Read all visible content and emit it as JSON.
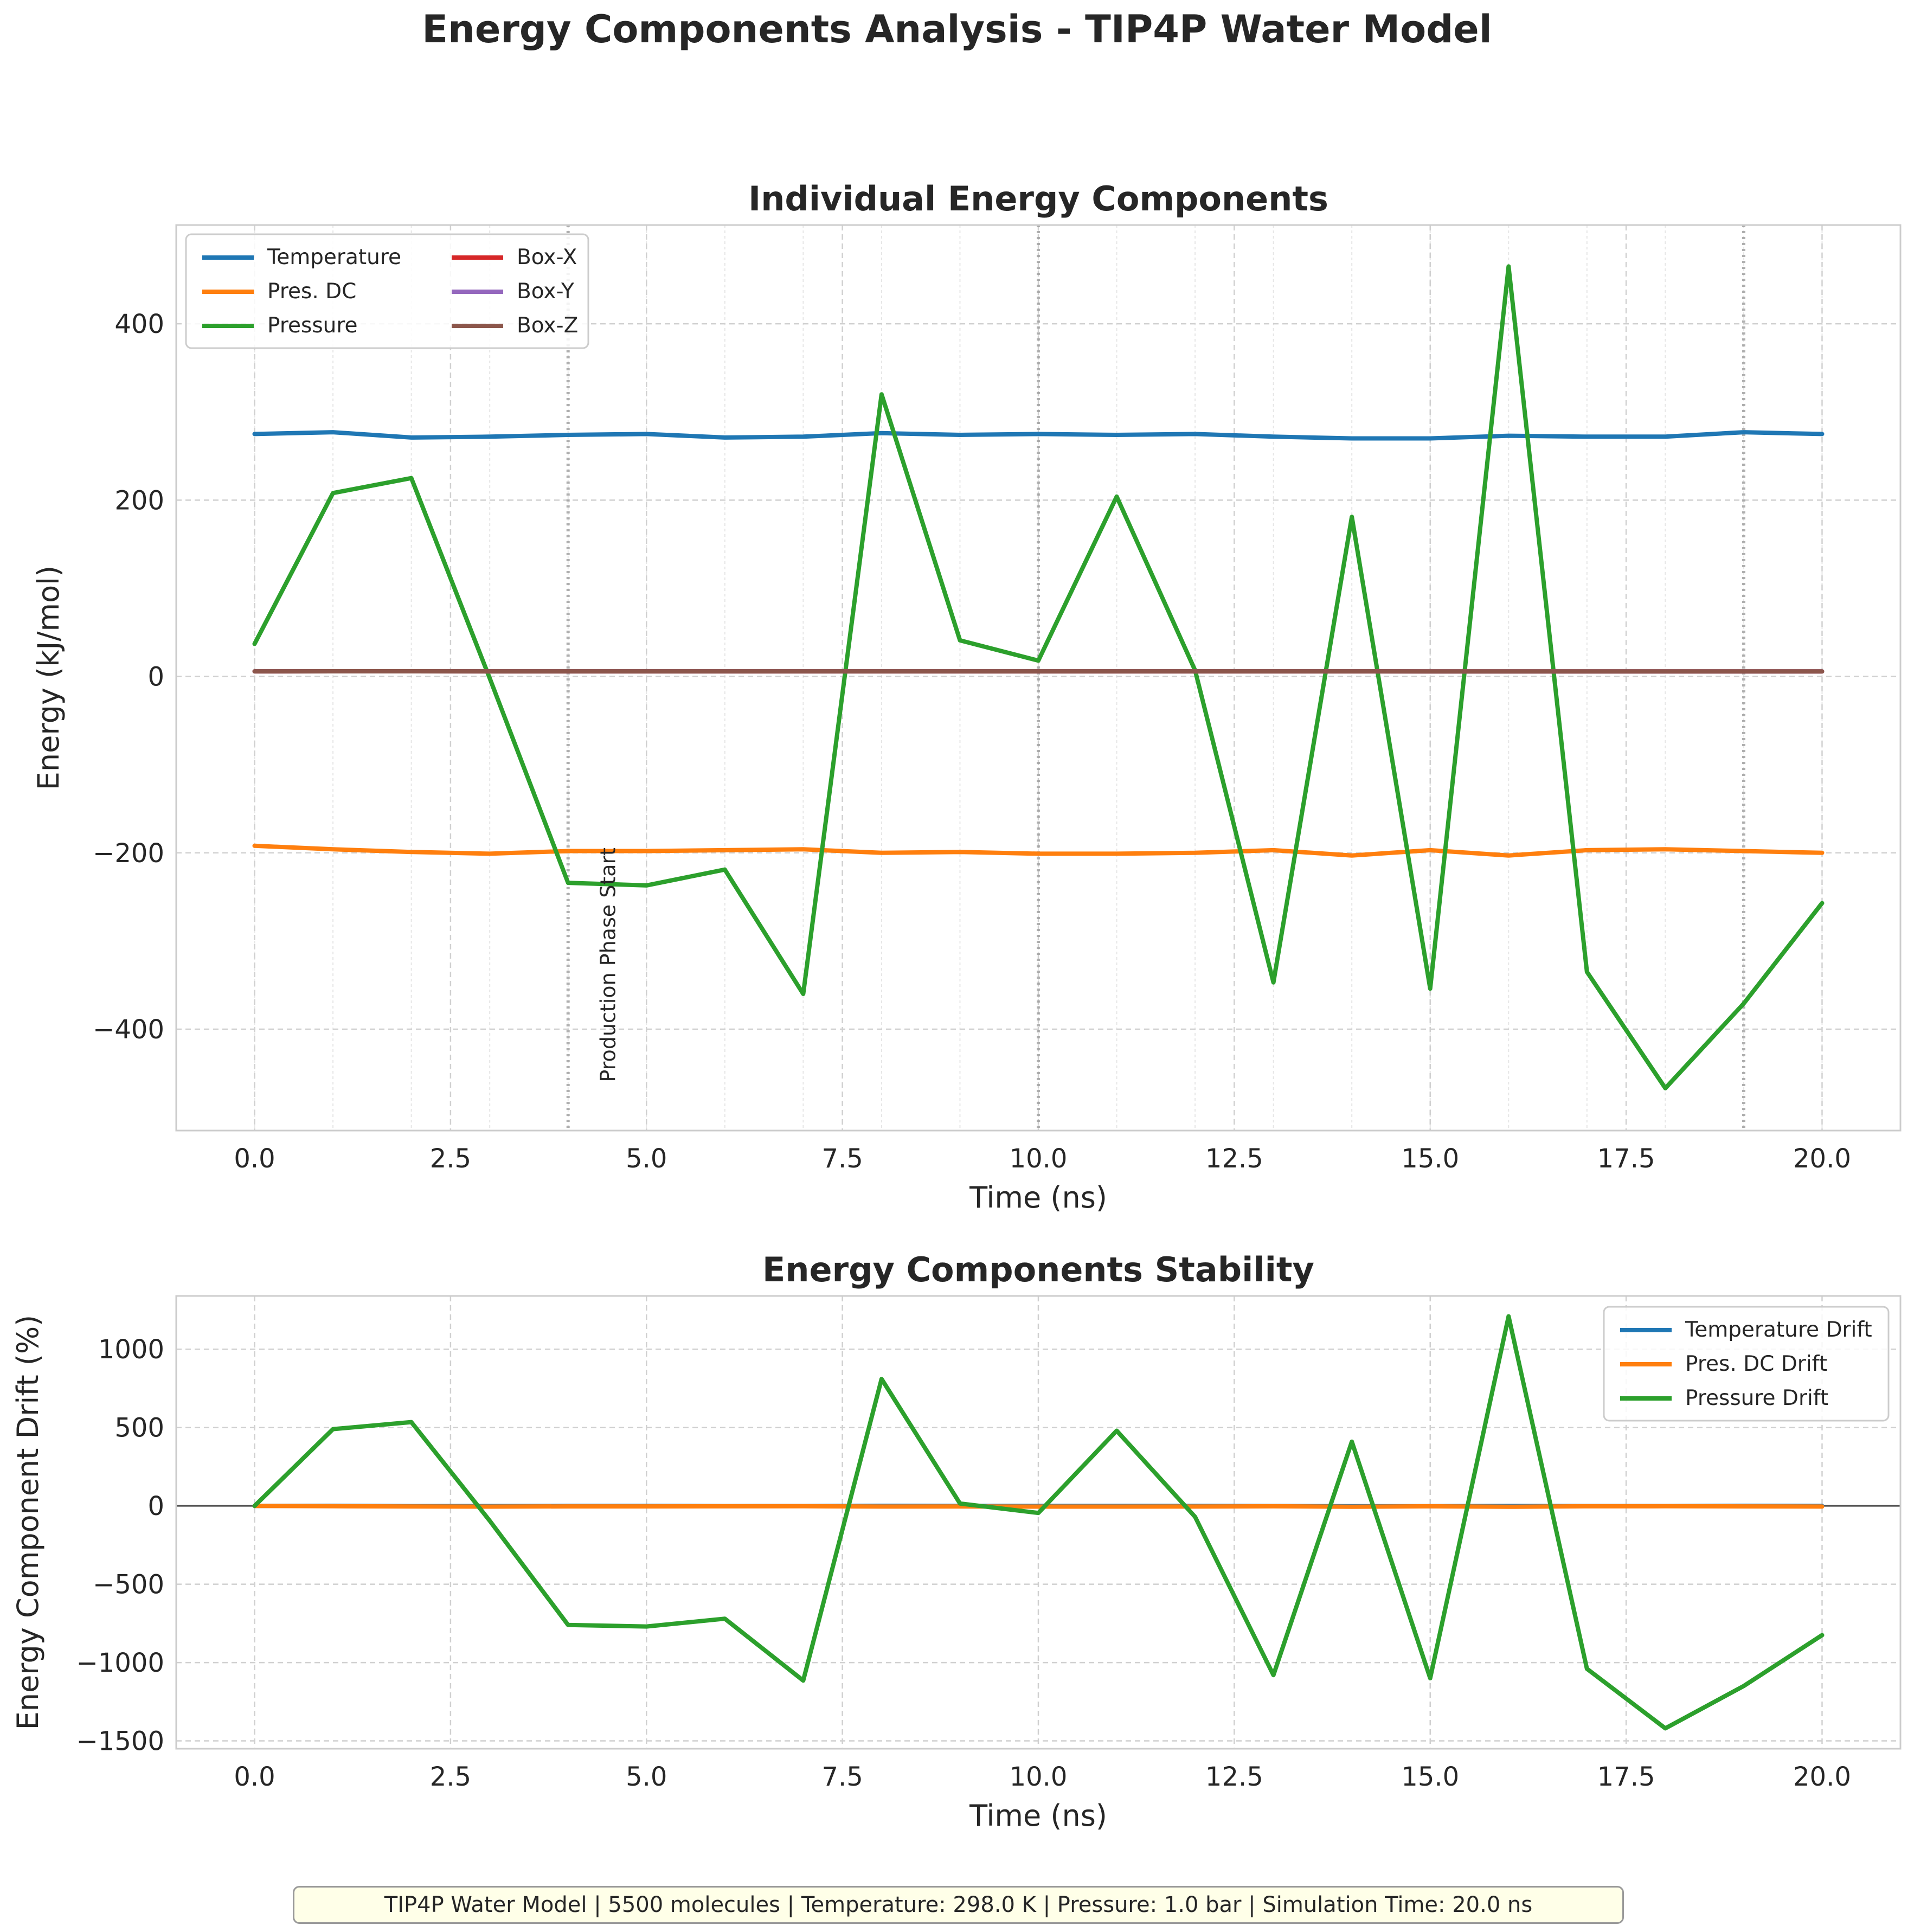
{
  "suptitle": "Energy Components Analysis - TIP4P Water Model",
  "footer": "TIP4P Water Model | 5500 molecules | Temperature: 298.0 K | Pressure: 1.0 bar | Simulation Time: 20.0 ns",
  "colors": {
    "blue": "#1f77b4",
    "orange": "#ff7f0e",
    "green": "#2ca02c",
    "red": "#d62728",
    "purple": "#9467bd",
    "brown": "#8c564b"
  },
  "chart_data": [
    {
      "type": "line",
      "title": "Individual Energy Components",
      "xlabel": "Time (ns)",
      "ylabel": "Energy (kJ/mol)",
      "xlim": [
        -1,
        21
      ],
      "ylim": [
        -515,
        512
      ],
      "xticks": [
        0,
        2.5,
        5,
        7.5,
        10,
        12.5,
        15,
        17.5,
        20
      ],
      "xtick_labels": [
        "0.0",
        "2.5",
        "5.0",
        "7.5",
        "10.0",
        "12.5",
        "15.0",
        "17.5",
        "20.0"
      ],
      "yticks": [
        -400,
        -200,
        0,
        200,
        400
      ],
      "ytick_labels": [
        "−400",
        "−200",
        "0",
        "200",
        "400"
      ],
      "grid": true,
      "legend": "upper-left, 2 columns",
      "vlines": [
        4,
        10,
        19
      ],
      "annotation": {
        "text": "Production Phase Start",
        "x": 4.6,
        "y": -460
      },
      "x": [
        0,
        1,
        2,
        3,
        4,
        5,
        6,
        7,
        8,
        9,
        10,
        11,
        12,
        13,
        14,
        15,
        16,
        17,
        18,
        19,
        20
      ],
      "series": [
        {
          "name": "Temperature",
          "color": "#1f77b4",
          "values": [
            275,
            277,
            271,
            272,
            274,
            275,
            271,
            272,
            276,
            274,
            275,
            274,
            275,
            272,
            270,
            270,
            273,
            272,
            272,
            277,
            275
          ]
        },
        {
          "name": "Pres. DC",
          "color": "#ff7f0e",
          "values": [
            -192,
            -196,
            -199,
            -201,
            -198,
            -198,
            -197,
            -196,
            -200,
            -199,
            -201,
            -201,
            -200,
            -197,
            -203,
            -197,
            -203,
            -197,
            -196,
            -198,
            -200
          ]
        },
        {
          "name": "Pressure",
          "color": "#2ca02c",
          "values": [
            37,
            208,
            225,
            -2,
            -234,
            -237,
            -219,
            -360,
            320,
            41,
            18,
            204,
            7,
            -347,
            181,
            -354,
            465,
            -335,
            -467,
            -371,
            -257
          ]
        },
        {
          "name": "Box-X",
          "color": "#d62728",
          "values": [
            5.8,
            5.9,
            5.9,
            5.8,
            5.8,
            5.8,
            5.8,
            5.8,
            5.8,
            5.8,
            5.8,
            5.8,
            5.8,
            5.8,
            5.8,
            5.7,
            5.7,
            5.7,
            5.7,
            5.7,
            5.7
          ]
        },
        {
          "name": "Box-Y",
          "color": "#9467bd",
          "values": [
            5.8,
            5.9,
            5.9,
            5.8,
            5.8,
            5.8,
            5.8,
            5.8,
            5.8,
            5.8,
            5.8,
            5.8,
            5.8,
            5.8,
            5.8,
            5.7,
            5.7,
            5.7,
            5.7,
            5.7,
            5.7
          ]
        },
        {
          "name": "Box-Z",
          "color": "#8c564b",
          "values": [
            5.8,
            5.9,
            5.9,
            5.8,
            5.8,
            5.8,
            5.8,
            5.8,
            5.8,
            5.8,
            5.8,
            5.8,
            5.8,
            5.8,
            5.8,
            5.7,
            5.7,
            5.7,
            5.7,
            5.7,
            5.7
          ]
        }
      ]
    },
    {
      "type": "line",
      "title": "Energy Components Stability",
      "xlabel": "Time (ns)",
      "ylabel": "Energy Component Drift (%)",
      "xlim": [
        -1,
        21
      ],
      "ylim": [
        -1550,
        1340
      ],
      "xticks": [
        0,
        2.5,
        5,
        7.5,
        10,
        12.5,
        15,
        17.5,
        20
      ],
      "xtick_labels": [
        "0.0",
        "2.5",
        "5.0",
        "7.5",
        "10.0",
        "12.5",
        "15.0",
        "17.5",
        "20.0"
      ],
      "yticks": [
        -1500,
        -1000,
        -500,
        0,
        500,
        1000
      ],
      "ytick_labels": [
        "−1500",
        "−1000",
        "−500",
        "0",
        "500",
        "1000"
      ],
      "grid": true,
      "legend": "upper-right",
      "hline": 0,
      "x": [
        0,
        1,
        2,
        3,
        4,
        5,
        6,
        7,
        8,
        9,
        10,
        11,
        12,
        13,
        14,
        15,
        16,
        17,
        18,
        19,
        20
      ],
      "series": [
        {
          "name": "Temperature Drift",
          "color": "#1f77b4",
          "values": [
            0,
            0.7,
            -1.5,
            -1.1,
            -0.4,
            0,
            -1.5,
            -1.1,
            0.4,
            -0.4,
            0,
            -0.4,
            0,
            -1.1,
            -1.8,
            -1.8,
            -0.7,
            -1.1,
            -1.1,
            0.7,
            0
          ]
        },
        {
          "name": "Pres. DC Drift",
          "color": "#ff7f0e",
          "values": [
            0,
            -2.1,
            -3.6,
            -4.7,
            -3.1,
            -3.1,
            -2.6,
            -2.1,
            -4.2,
            -3.6,
            -4.7,
            -4.7,
            -4.2,
            -2.6,
            -5.7,
            -2.6,
            -5.7,
            -2.6,
            -2.1,
            -3.1,
            -4.2
          ]
        },
        {
          "name": "Pressure Drift",
          "color": "#2ca02c",
          "values": [
            0,
            490,
            535,
            -95,
            -760,
            -770,
            -720,
            -1115,
            810,
            15,
            -45,
            480,
            -70,
            -1080,
            410,
            -1100,
            1210,
            -1040,
            -1420,
            -1150,
            -825
          ]
        }
      ]
    }
  ]
}
